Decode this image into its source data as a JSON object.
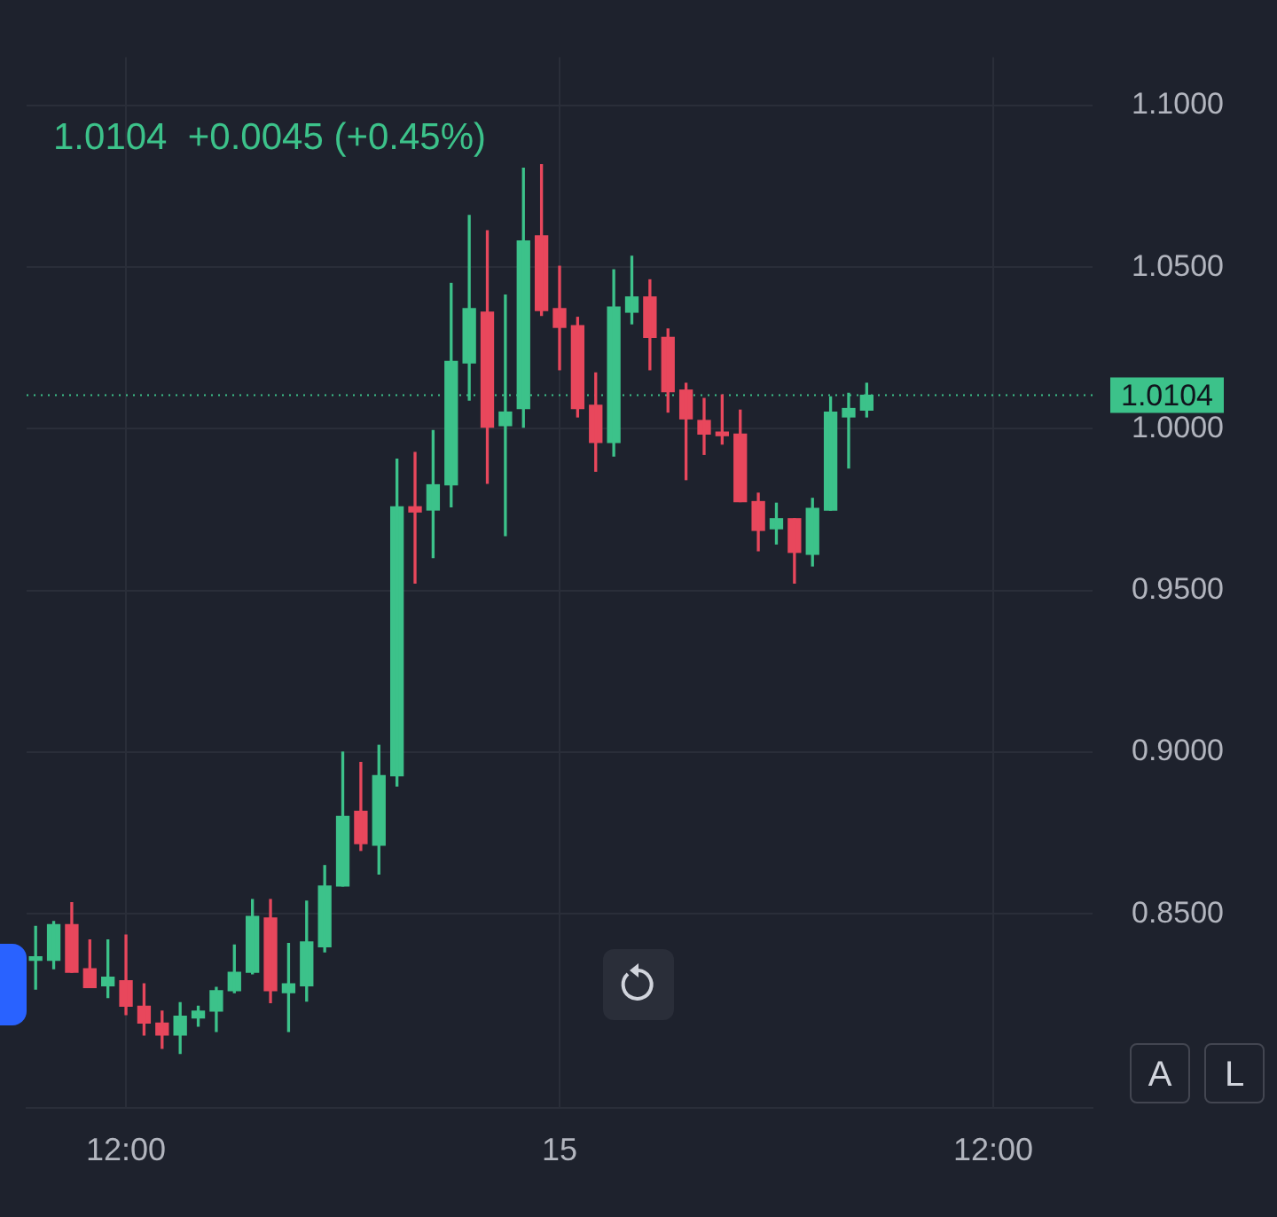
{
  "chart_data": {
    "type": "candlestick",
    "subtitle": "1.0104  +0.0045 (+0.45%)",
    "categories": [
      null,
      null,
      null,
      null,
      null,
      "12:00",
      null,
      null,
      null,
      null,
      null,
      null,
      null,
      null,
      null,
      null,
      null,
      null,
      null,
      null,
      null,
      null,
      null,
      null,
      null,
      null,
      null,
      null,
      null,
      "15",
      null,
      null,
      null,
      null,
      null,
      null,
      null,
      null,
      null,
      null,
      null,
      null,
      null,
      null,
      null,
      null,
      null,
      null,
      null,
      null,
      null,
      null,
      null,
      "12:00",
      null,
      null,
      null,
      null,
      null
    ],
    "ohlc": [
      [
        0.8356,
        0.8461,
        0.8267,
        0.8366
      ],
      [
        0.8356,
        0.8476,
        0.833,
        0.8466
      ],
      [
        0.8466,
        0.8534,
        0.8319,
        0.8319
      ],
      [
        0.833,
        0.8419,
        0.8272,
        0.8272
      ],
      [
        0.8277,
        0.8419,
        0.8241,
        0.8304
      ],
      [
        0.8293,
        0.8434,
        0.8188,
        0.8214
      ],
      [
        0.8214,
        0.8283,
        0.8125,
        0.8162
      ],
      [
        0.8162,
        0.8199,
        0.8084,
        0.8125
      ],
      [
        0.8125,
        0.8225,
        0.8068,
        0.8183
      ],
      [
        0.8178,
        0.8214,
        0.8152,
        0.8199
      ],
      [
        0.8199,
        0.8272,
        0.8136,
        0.8262
      ],
      [
        0.8262,
        0.8403,
        0.8256,
        0.8319
      ],
      [
        0.8319,
        0.8544,
        0.8314,
        0.8492
      ],
      [
        0.8487,
        0.8544,
        0.8225,
        0.8262
      ],
      [
        0.8256,
        0.8408,
        0.8136,
        0.8283
      ],
      [
        0.8277,
        0.8539,
        0.823,
        0.8413
      ],
      [
        0.8398,
        0.8649,
        0.8382,
        0.8586
      ],
      [
        0.8586,
        0.9,
        0.8586,
        0.8801
      ],
      [
        0.8817,
        0.8968,
        0.8696,
        0.8717
      ],
      [
        0.8712,
        0.9021,
        0.8623,
        0.8927
      ],
      [
        0.8927,
        0.9906,
        0.8895,
        0.9759
      ],
      [
        0.9759,
        0.9927,
        0.9523,
        0.9743
      ],
      [
        0.9749,
        0.9995,
        0.9602,
        0.9827
      ],
      [
        0.9827,
        1.045,
        0.9759,
        1.0209
      ],
      [
        1.0204,
        1.066,
        1.0089,
        1.0372
      ],
      [
        1.0361,
        1.0613,
        0.9832,
        1.0005
      ],
      [
        1.001,
        1.0414,
        0.967,
        1.0052
      ],
      [
        1.0063,
        1.0806,
        1.0005,
        1.0581
      ],
      [
        1.0597,
        1.0817,
        1.0351,
        1.0366
      ],
      [
        1.0372,
        1.0503,
        1.0183,
        1.0314
      ],
      [
        1.0319,
        1.0345,
        1.0037,
        1.0063
      ],
      [
        1.0073,
        1.0173,
        0.9869,
        0.9958
      ],
      [
        0.9958,
        1.0492,
        0.9916,
        1.0377
      ],
      [
        1.0361,
        1.0534,
        1.0325,
        1.0408
      ],
      [
        1.0408,
        1.0461,
        1.0183,
        1.0283
      ],
      [
        1.0283,
        1.0309,
        1.0052,
        1.0115
      ],
      [
        1.012,
        1.0141,
        0.9843,
        1.0031
      ],
      [
        1.0026,
        1.0094,
        0.9921,
        0.9984
      ],
      [
        0.9984,
        1.0105,
        0.9953,
        0.9979
      ],
      [
        0.9984,
        1.0058,
        0.9775,
        0.9775
      ],
      [
        0.9775,
        0.9801,
        0.9623,
        0.9686
      ],
      [
        0.9691,
        0.977,
        0.9644,
        0.9722
      ],
      [
        0.9722,
        0.9722,
        0.9523,
        0.9618
      ],
      [
        0.9612,
        0.9785,
        0.9576,
        0.9754
      ],
      [
        0.9749,
        1.0099,
        0.9749,
        1.0052
      ],
      [
        1.0037,
        1.011,
        0.9879,
        1.0063
      ],
      [
        1.0058,
        1.0141,
        1.0037,
        1.0104
      ],
      null,
      null,
      null,
      null,
      null,
      null,
      null,
      null,
      null,
      null,
      null,
      null
    ],
    "colors": [
      "#3cc28a",
      "#3cc28a",
      "#e8475c",
      "#e8475c",
      "#3cc28a",
      "#e8475c",
      "#e8475c",
      "#e8475c",
      "#3cc28a",
      "#3cc28a",
      "#3cc28a",
      "#3cc28a",
      "#3cc28a",
      "#e8475c",
      "#3cc28a",
      "#3cc28a",
      "#3cc28a",
      "#3cc28a",
      "#e8475c",
      "#3cc28a",
      "#3cc28a",
      "#e8475c",
      "#3cc28a",
      "#3cc28a",
      "#3cc28a",
      "#e8475c",
      "#3cc28a",
      "#3cc28a",
      "#e8475c",
      "#e8475c",
      "#e8475c",
      "#e8475c",
      "#3cc28a",
      "#3cc28a",
      "#e8475c",
      "#e8475c",
      "#e8475c",
      "#e8475c",
      "#e8475c",
      "#e8475c",
      "#e8475c",
      "#3cc28a",
      "#e8475c",
      "#3cc28a",
      "#3cc28a",
      "#3cc28a",
      "#3cc28a",
      null,
      null,
      null,
      null,
      null,
      null,
      null,
      null,
      null,
      null,
      null,
      null
    ],
    "ylim": [
      0.79,
      1.115
    ],
    "yticks": [
      {
        "value": 0.85,
        "label": "0.8500"
      },
      {
        "value": 0.9,
        "label": "0.9000"
      },
      {
        "value": 0.95,
        "label": "0.9500"
      },
      {
        "value": 1.0,
        "label": "1.0000"
      },
      {
        "value": 1.05,
        "label": "1.0500"
      },
      {
        "value": 1.1,
        "label": "1.1000"
      }
    ],
    "grid": true,
    "legend": false,
    "ref_lines": [
      {
        "axis": "y",
        "value": 1.0104,
        "label": "1.0104",
        "color": "#3cc28a",
        "line_style": "dotted"
      }
    ],
    "annotations": [
      "A",
      "L"
    ]
  }
}
